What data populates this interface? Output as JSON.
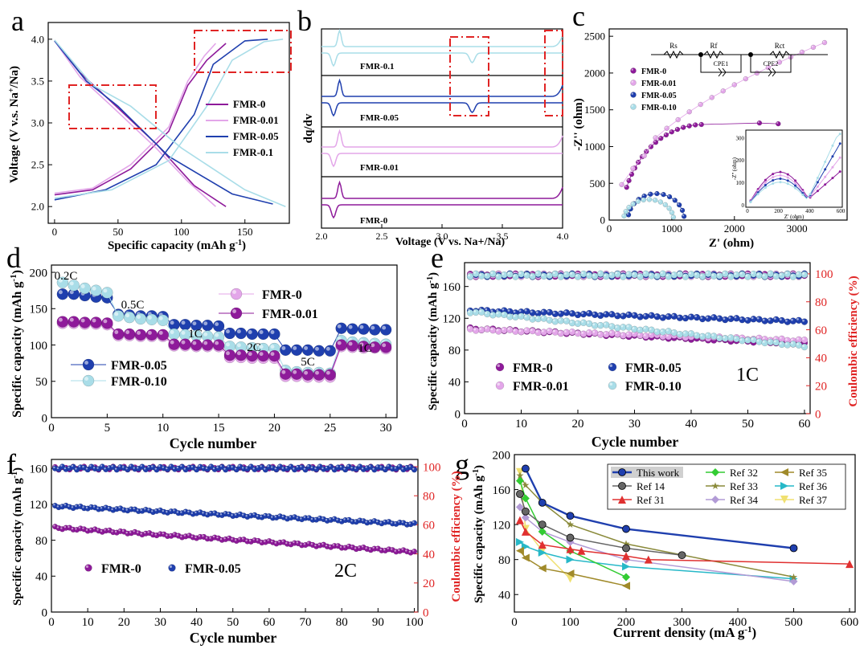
{
  "colors": {
    "fmr0": "#8e1a9a",
    "fmr001": "#e3a6e9",
    "fmr005": "#1f3fae",
    "fmr01": "#a9dde8",
    "red": "#e02424"
  },
  "panels": {
    "a": "a",
    "b": "b",
    "c": "c",
    "d": "d",
    "e": "e",
    "f": "f",
    "g": "g"
  },
  "chart_data": [
    {
      "id": "a",
      "type": "line",
      "xlabel": "Specific capacity (mAh g",
      "xlabel_sup": "-1",
      "xlabel_end": ")",
      "ylabel": "Voltage (V v.s. Na",
      "ylabel_sup": "+",
      "ylabel_end": "/Na)",
      "xlim": [
        -5,
        185
      ],
      "ylim": [
        1.8,
        4.2
      ],
      "xticks": [
        "0",
        "50",
        "100",
        "150"
      ],
      "yticks": [
        "2.0",
        "2.5",
        "3.0",
        "3.5",
        "4.0"
      ],
      "legend": [
        "FMR-0",
        "FMR-0.01",
        "FMR-0.05",
        "FMR-0.1"
      ],
      "series": [
        {
          "name": "FMR-0",
          "charge": [
            [
              0,
              2.14
            ],
            [
              30,
              2.2
            ],
            [
              60,
              2.45
            ],
            [
              90,
              2.9
            ],
            [
              105,
              3.45
            ],
            [
              120,
              3.75
            ],
            [
              135,
              3.95
            ]
          ],
          "discharge": [
            [
              0,
              3.98
            ],
            [
              20,
              3.6
            ],
            [
              45,
              3.25
            ],
            [
              80,
              2.75
            ],
            [
              110,
              2.25
            ],
            [
              135,
              2.0
            ]
          ]
        },
        {
          "name": "FMR-0.01",
          "charge": [
            [
              0,
              2.16
            ],
            [
              30,
              2.22
            ],
            [
              60,
              2.5
            ],
            [
              90,
              2.95
            ],
            [
              105,
              3.5
            ],
            [
              118,
              3.8
            ],
            [
              127,
              3.95
            ]
          ],
          "discharge": [
            [
              0,
              3.98
            ],
            [
              20,
              3.55
            ],
            [
              45,
              3.2
            ],
            [
              80,
              2.7
            ],
            [
              105,
              2.3
            ],
            [
              127,
              2.0
            ]
          ]
        },
        {
          "name": "FMR-0.05",
          "charge": [
            [
              0,
              2.08
            ],
            [
              40,
              2.2
            ],
            [
              80,
              2.5
            ],
            [
              110,
              3.1
            ],
            [
              125,
              3.7
            ],
            [
              150,
              3.98
            ],
            [
              168,
              4.0
            ]
          ],
          "discharge": [
            [
              0,
              3.98
            ],
            [
              25,
              3.5
            ],
            [
              50,
              3.2
            ],
            [
              90,
              2.6
            ],
            [
              140,
              2.15
            ],
            [
              172,
              2.03
            ]
          ]
        },
        {
          "name": "FMR-0.1",
          "charge": [
            [
              0,
              2.1
            ],
            [
              45,
              2.2
            ],
            [
              90,
              2.55
            ],
            [
              120,
              3.2
            ],
            [
              140,
              3.75
            ],
            [
              165,
              3.97
            ],
            [
              180,
              4.0
            ]
          ],
          "discharge": [
            [
              0,
              3.99
            ],
            [
              30,
              3.45
            ],
            [
              60,
              3.2
            ],
            [
              100,
              2.7
            ],
            [
              150,
              2.2
            ],
            [
              182,
              2.0
            ]
          ]
        }
      ]
    },
    {
      "id": "b",
      "type": "line",
      "xlabel": "Voltage (V vs. Na+/Na)",
      "ylabel": "dq/dv",
      "xlim": [
        2.0,
        4.0
      ],
      "xticks": [
        "2.0",
        "2.5",
        "3.0",
        "3.5",
        "4.0"
      ],
      "series": [
        "FMR-0.1",
        "FMR-0.05",
        "FMR-0.01",
        "FMR-0"
      ]
    },
    {
      "id": "c",
      "type": "scatter",
      "xlabel": "Z' (ohm)",
      "ylabel": "-Z'' (ohm)",
      "xlim": [
        0,
        3800
      ],
      "ylim": [
        0,
        2600
      ],
      "xticks": [
        "0",
        "1000",
        "2000",
        "3000"
      ],
      "yticks": [
        "0",
        "500",
        "1000",
        "1500",
        "2000",
        "2500"
      ],
      "legend": [
        "FMR-0",
        "FMR-0.01",
        "FMR-0.05",
        "FMR-0.10"
      ],
      "circuit": [
        "Rs",
        "Rf",
        "Rct",
        "CPE1",
        "CPE2"
      ],
      "inset": {
        "xlabel": "Z' (ohm)",
        "ylabel": "-Z'' (ohm)",
        "xticks": [
          "0",
          "200",
          "400",
          "600"
        ],
        "yticks": [
          "0",
          "100",
          "200",
          "300"
        ]
      }
    },
    {
      "id": "d",
      "type": "scatter",
      "xlabel": "Cycle number",
      "ylabel": "Specific capacity (mAh g",
      "ylabel_sup": "-1",
      "ylabel_end": ")",
      "xlim": [
        0,
        31
      ],
      "ylim": [
        0,
        210
      ],
      "xticks": [
        "0",
        "5",
        "10",
        "15",
        "20",
        "25",
        "30"
      ],
      "yticks": [
        "0",
        "50",
        "100",
        "150",
        "200"
      ],
      "legend": [
        "FMR-0",
        "FMR-0.01",
        "FMR-0.05",
        "FMR-0.10"
      ],
      "rate_labels": [
        "0.2C",
        "0.5C",
        "1C",
        "2C",
        "5C",
        "1C"
      ],
      "series": [
        {
          "name": "FMR-0",
          "values": [
            130,
            130,
            129,
            129,
            128,
            113,
            113,
            112,
            112,
            112,
            99,
            99,
            98,
            98,
            98,
            83,
            83,
            82,
            82,
            82,
            57,
            57,
            56,
            56,
            56,
            98,
            97,
            96,
            96,
            95
          ]
        },
        {
          "name": "FMR-0.01",
          "values": [
            132,
            132,
            131,
            131,
            130,
            115,
            115,
            114,
            114,
            114,
            101,
            101,
            100,
            100,
            100,
            86,
            86,
            85,
            85,
            85,
            60,
            60,
            59,
            59,
            59,
            100,
            99,
            98,
            97,
            97
          ]
        },
        {
          "name": "FMR-0.05",
          "values": [
            170,
            170,
            168,
            166,
            165,
            142,
            141,
            140,
            140,
            139,
            128,
            128,
            127,
            127,
            126,
            116,
            116,
            115,
            115,
            115,
            93,
            93,
            93,
            92,
            92,
            123,
            122,
            122,
            121,
            121
          ]
        },
        {
          "name": "FMR-0.10",
          "values": [
            186,
            182,
            178,
            175,
            172,
            140,
            138,
            136,
            135,
            134,
            115,
            114,
            113,
            112,
            111,
            98,
            97,
            96,
            95,
            95,
            65,
            63,
            62,
            62,
            61,
            106,
            104,
            103,
            102,
            101
          ]
        }
      ]
    },
    {
      "id": "e",
      "type": "scatter",
      "xlabel": "Cycle number",
      "ylabel": "Specific capacity (mAh g",
      "ylabel_sup": "-1",
      "ylabel_end": ")",
      "y2label": "Coulombic efficiency (%)",
      "xlim": [
        0,
        61
      ],
      "ylim": [
        0,
        190
      ],
      "y2lim": [
        0,
        108
      ],
      "xticks": [
        "0",
        "10",
        "20",
        "30",
        "40",
        "50",
        "60"
      ],
      "yticks": [
        "0",
        "40",
        "80",
        "120",
        "160"
      ],
      "y2ticks": [
        "0",
        "20",
        "40",
        "60",
        "80",
        "100"
      ],
      "legend": [
        "FMR-0",
        "FMR-0.01",
        "FMR-0.05",
        "FMR-0.10"
      ],
      "rate": "1C",
      "series": [
        {
          "name": "FMR-0",
          "start": 107,
          "end": 88
        },
        {
          "name": "FMR-0.01",
          "start": 106,
          "end": 92
        },
        {
          "name": "FMR-0.05",
          "start": 130,
          "end": 116
        },
        {
          "name": "FMR-0.10",
          "start": 128,
          "end": 85
        }
      ]
    },
    {
      "id": "f",
      "type": "scatter",
      "xlabel": "Cycle number",
      "ylabel": "Specific capacity (mAh g",
      "ylabel_sup": "-1",
      "ylabel_end": ")",
      "y2label": "Coulombic efficiency (%)",
      "xlim": [
        0,
        101
      ],
      "ylim": [
        0,
        170
      ],
      "y2lim": [
        0,
        105
      ],
      "xticks": [
        "0",
        "10",
        "20",
        "30",
        "40",
        "50",
        "60",
        "70",
        "80",
        "90",
        "100"
      ],
      "yticks": [
        "0",
        "40",
        "80",
        "120",
        "160"
      ],
      "y2ticks": [
        "0",
        "20",
        "40",
        "60",
        "80",
        "100"
      ],
      "legend": [
        "FMR-0",
        "FMR-0.05"
      ],
      "rate": "2C",
      "series": [
        {
          "name": "FMR-0",
          "start": 94,
          "end": 67
        },
        {
          "name": "FMR-0.05",
          "start": 118,
          "end": 98
        }
      ]
    },
    {
      "id": "g",
      "type": "line",
      "xlabel": "Current density (mA g",
      "xlabel_sup": "-1",
      "xlabel_end": ")",
      "ylabel": "Specific capacity (mAh g",
      "ylabel_sup": "-1",
      "ylabel_end": ")",
      "xlim": [
        0,
        610
      ],
      "ylim": [
        20,
        200
      ],
      "xticks": [
        "0",
        "100",
        "200",
        "300",
        "400",
        "500",
        "600"
      ],
      "yticks": [
        "40",
        "80",
        "120",
        "160",
        "200"
      ],
      "series": [
        {
          "name": "This work",
          "color": "#1f3fae",
          "marker": "circle",
          "x": [
            20,
            50,
            100,
            200,
            500
          ],
          "y": [
            184,
            145,
            130,
            115,
            93
          ]
        },
        {
          "name": "Ref 14",
          "color": "#666666",
          "marker": "circle",
          "x": [
            10,
            20,
            50,
            100,
            200,
            300
          ],
          "y": [
            155,
            135,
            120,
            105,
            93,
            85
          ]
        },
        {
          "name": "Ref 31",
          "color": "#e03030",
          "marker": "triangle",
          "x": [
            10,
            20,
            50,
            100,
            120,
            200,
            240,
            600
          ],
          "y": [
            125,
            112,
            97,
            92,
            90,
            84,
            80,
            75
          ]
        },
        {
          "name": "Ref 32",
          "color": "#33cc33",
          "marker": "diamond",
          "x": [
            10,
            20,
            50,
            100,
            200
          ],
          "y": [
            170,
            150,
            112,
            90,
            60
          ]
        },
        {
          "name": "Ref 33",
          "color": "#8a8a3a",
          "marker": "star",
          "x": [
            10,
            20,
            50,
            100,
            200,
            500
          ],
          "y": [
            176,
            165,
            145,
            120,
            98,
            60
          ]
        },
        {
          "name": "Ref 34",
          "color": "#b29bd6",
          "marker": "diamond",
          "x": [
            10,
            20,
            50,
            100,
            200,
            500
          ],
          "y": [
            140,
            128,
            112,
            100,
            80,
            55
          ]
        },
        {
          "name": "Ref 35",
          "color": "#a08a2a",
          "marker": "triangle-left",
          "x": [
            10,
            20,
            50,
            100,
            200
          ],
          "y": [
            90,
            82,
            70,
            64,
            50
          ]
        },
        {
          "name": "Ref 36",
          "color": "#27b8c8",
          "marker": "triangle-right",
          "x": [
            10,
            20,
            50,
            100,
            200,
            500
          ],
          "y": [
            100,
            95,
            88,
            80,
            72,
            58
          ]
        },
        {
          "name": "Ref 37",
          "color": "#f0e070",
          "marker": "triangle-down",
          "x": [
            10,
            20,
            50,
            100
          ],
          "y": [
            180,
            115,
            90,
            58
          ]
        }
      ]
    }
  ]
}
